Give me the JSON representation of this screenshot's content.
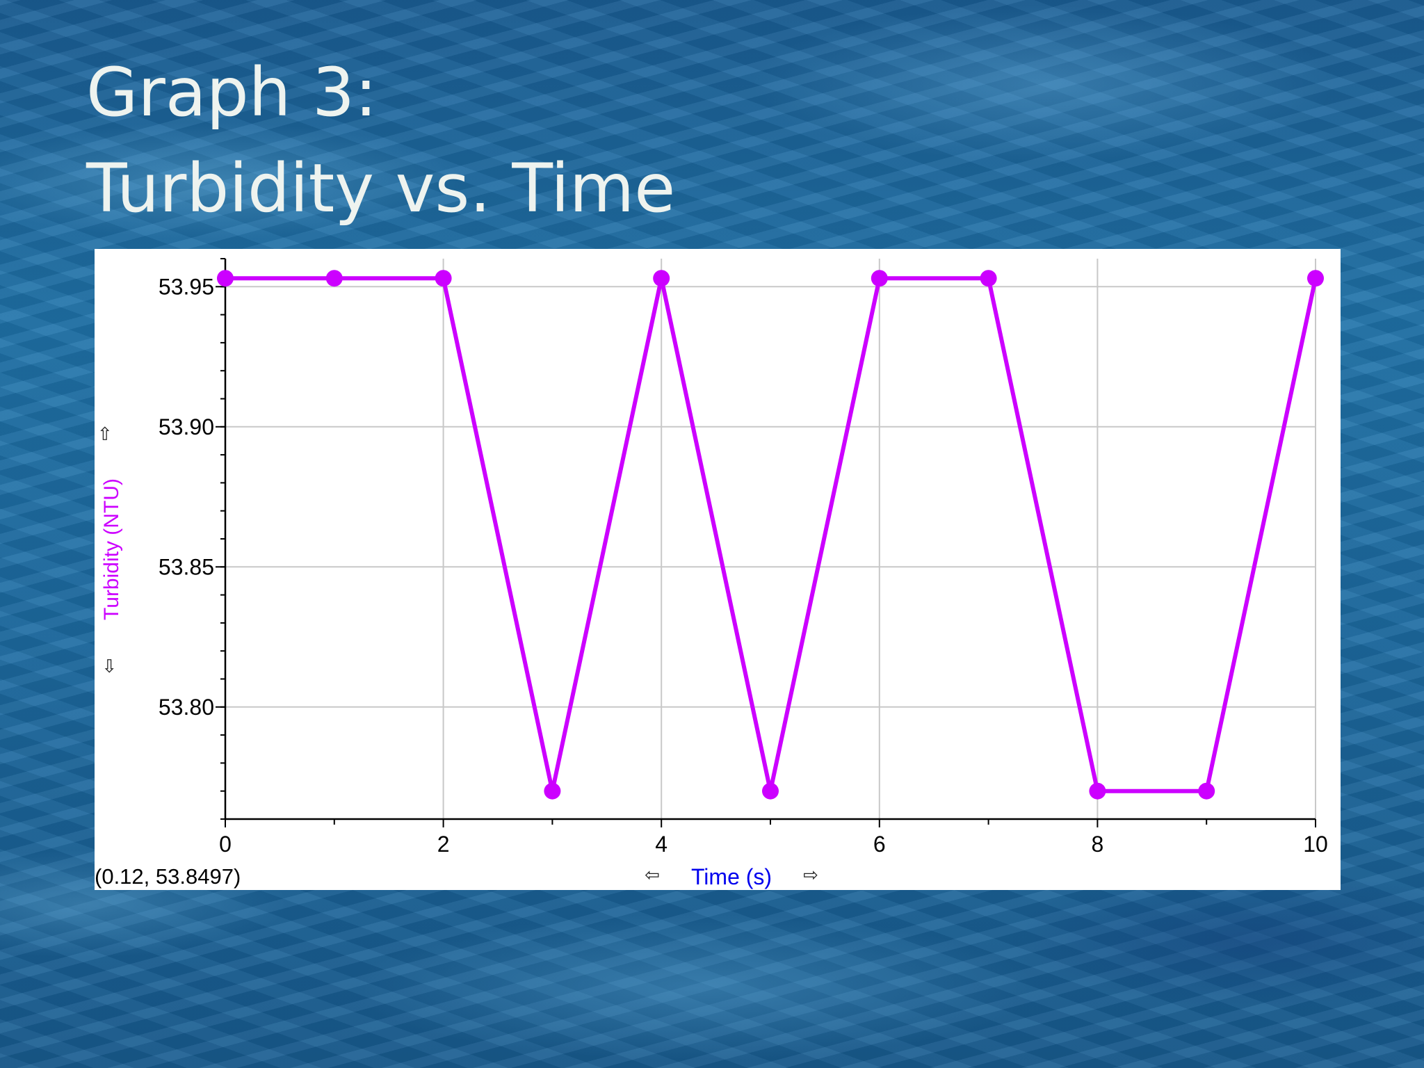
{
  "slide": {
    "title_line1": "Graph 3:",
    "title_line2": "Turbidity vs. Time"
  },
  "readout": {
    "coordinates": "(0.12, 53.8497)"
  },
  "icons": {
    "y_up": "up-arrow-icon",
    "y_down": "down-arrow-icon",
    "x_left": "left-arrow-icon",
    "x_right": "right-arrow-icon"
  },
  "colors": {
    "series": "#cc00ff",
    "xlabel": "#0000ee"
  },
  "chart_data": {
    "type": "line",
    "title": "",
    "xlabel": "Time (s)",
    "ylabel": "Turbidity (NTU)",
    "xlim": [
      0,
      10
    ],
    "ylim": [
      53.76,
      53.96
    ],
    "xticks": [
      "0",
      "2",
      "4",
      "6",
      "8",
      "10"
    ],
    "yticks": [
      "53.80",
      "53.85",
      "53.90",
      "53.95"
    ],
    "grid": true,
    "series": [
      {
        "x": [
          0,
          1,
          2,
          3,
          4,
          5,
          6,
          7,
          8,
          9,
          10
        ],
        "y": [
          53.953,
          53.953,
          53.953,
          53.77,
          53.953,
          53.77,
          53.953,
          53.953,
          53.77,
          53.77,
          53.953
        ]
      }
    ]
  }
}
